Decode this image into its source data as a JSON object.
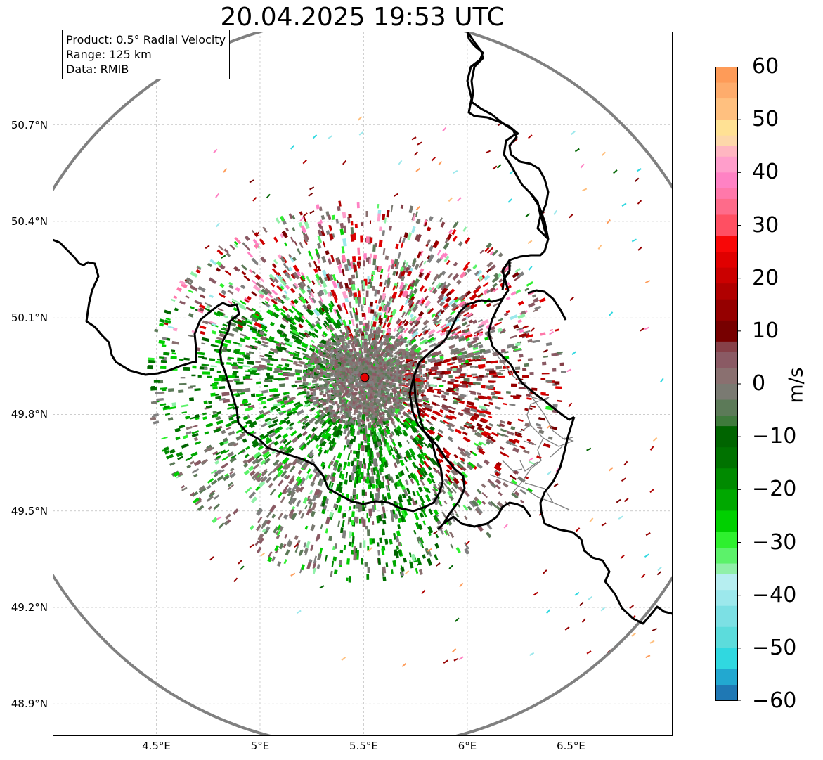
{
  "title": "20.04.2025 19:53 UTC",
  "info": {
    "product": "Product: 0.5° Radial Velocity",
    "range": "Range: 125 km",
    "source": "Data: RMIB"
  },
  "map": {
    "lon_range": [
      4.0,
      6.99
    ],
    "lat_range": [
      48.8,
      50.99
    ],
    "radar_site": {
      "lon": 5.505,
      "lat": 49.915
    },
    "range_km": 125,
    "x_ticks": [
      {
        "lon": 4.5,
        "label": "4.5°E"
      },
      {
        "lon": 5.0,
        "label": "5°E"
      },
      {
        "lon": 5.5,
        "label": "5.5°E"
      },
      {
        "lon": 6.0,
        "label": "6°E"
      },
      {
        "lon": 6.5,
        "label": "6.5°E"
      }
    ],
    "y_ticks": [
      {
        "lat": 50.7,
        "label": "50.7°N"
      },
      {
        "lat": 50.4,
        "label": "50.4°N"
      },
      {
        "lat": 50.1,
        "label": "50.1°N"
      },
      {
        "lat": 49.8,
        "label": "49.8°N"
      },
      {
        "lat": 49.5,
        "label": "49.5°N"
      },
      {
        "lat": 49.2,
        "label": "49.2°N"
      },
      {
        "lat": 48.9,
        "label": "48.9°N"
      }
    ],
    "gridlines": true,
    "range_ring_color": "#808080",
    "border_color": "#000000",
    "admin_border_color": "#808080",
    "site_marker_color": "#e60000"
  },
  "colorbar": {
    "unit": "m/s",
    "min": -60,
    "max": 60,
    "ticks": [
      {
        "value": 60,
        "label": "60"
      },
      {
        "value": 50,
        "label": "50"
      },
      {
        "value": 40,
        "label": "40"
      },
      {
        "value": 30,
        "label": "30"
      },
      {
        "value": 20,
        "label": "20"
      },
      {
        "value": 10,
        "label": "10"
      },
      {
        "value": 0,
        "label": "0"
      },
      {
        "value": -10,
        "label": "−10"
      },
      {
        "value": -20,
        "label": "−20"
      },
      {
        "value": -30,
        "label": "−30"
      },
      {
        "value": -40,
        "label": "−40"
      },
      {
        "value": -50,
        "label": "−50"
      },
      {
        "value": -60,
        "label": "−60"
      }
    ],
    "bands": [
      {
        "from": 57,
        "to": 60,
        "color": "#fe9b58"
      },
      {
        "from": 54,
        "to": 57,
        "color": "#feac6c"
      },
      {
        "from": 50,
        "to": 54,
        "color": "#ffc07f"
      },
      {
        "from": 47,
        "to": 50,
        "color": "#ffe194"
      },
      {
        "from": 45,
        "to": 47,
        "color": "#fdd7aa"
      },
      {
        "from": 43,
        "to": 45,
        "color": "#ffb6c1"
      },
      {
        "from": 40,
        "to": 43,
        "color": "#ff9ecb"
      },
      {
        "from": 37,
        "to": 40,
        "color": "#ff82c4"
      },
      {
        "from": 35,
        "to": 37,
        "color": "#ff78aa"
      },
      {
        "from": 32,
        "to": 35,
        "color": "#fe6b8a"
      },
      {
        "from": 28,
        "to": 32,
        "color": "#ff4f62"
      },
      {
        "from": 25,
        "to": 28,
        "color": "#f80707"
      },
      {
        "from": 22,
        "to": 25,
        "color": "#e00000"
      },
      {
        "from": 19,
        "to": 22,
        "color": "#cb0000"
      },
      {
        "from": 16,
        "to": 19,
        "color": "#b00000"
      },
      {
        "from": 12,
        "to": 16,
        "color": "#950000"
      },
      {
        "from": 8,
        "to": 12,
        "color": "#770000"
      },
      {
        "from": 6,
        "to": 8,
        "color": "#864048"
      },
      {
        "from": 3,
        "to": 6,
        "color": "#8a5a64"
      },
      {
        "from": 0,
        "to": 3,
        "color": "#8a7070"
      },
      {
        "from": -3,
        "to": 0,
        "color": "#7a7a72"
      },
      {
        "from": -6,
        "to": -3,
        "color": "#5c7a58"
      },
      {
        "from": -8,
        "to": -6,
        "color": "#3f7a3c"
      },
      {
        "from": -12,
        "to": -8,
        "color": "#006400"
      },
      {
        "from": -16,
        "to": -12,
        "color": "#007200"
      },
      {
        "from": -20,
        "to": -16,
        "color": "#008a00"
      },
      {
        "from": -24,
        "to": -20,
        "color": "#00a800"
      },
      {
        "from": -28,
        "to": -24,
        "color": "#00d000"
      },
      {
        "from": -31,
        "to": -28,
        "color": "#2ef02e"
      },
      {
        "from": -34,
        "to": -31,
        "color": "#5cf26a"
      },
      {
        "from": -36,
        "to": -34,
        "color": "#90f0a8"
      },
      {
        "from": -39,
        "to": -36,
        "color": "#b6eef0"
      },
      {
        "from": -42,
        "to": -39,
        "color": "#9ce8ec"
      },
      {
        "from": -46,
        "to": -42,
        "color": "#7ce0e4"
      },
      {
        "from": -50,
        "to": -46,
        "color": "#5cdcdc"
      },
      {
        "from": -54,
        "to": -50,
        "color": "#30d8e0"
      },
      {
        "from": -57,
        "to": -54,
        "color": "#22a8d0"
      },
      {
        "from": -60,
        "to": -57,
        "color": "#1f78b4"
      }
    ]
  },
  "colors": {
    "inbound_palette": [
      "#006400",
      "#007200",
      "#008a00",
      "#00a800",
      "#00d000",
      "#2ef02e",
      "#5cf26a",
      "#90f0a8"
    ],
    "outbound_palette": [
      "#770000",
      "#950000",
      "#b00000",
      "#cb0000",
      "#e00000",
      "#864048",
      "#ff78aa",
      "#ff9ecb"
    ],
    "near_zero_palette": [
      "#8a7070",
      "#7a7a72",
      "#8a5a64",
      "#5c7a58",
      "#808080"
    ],
    "far_palette": [
      "#ffc07f",
      "#fe9b58",
      "#ff82c4",
      "#30d8e0",
      "#9ce8ec",
      "#006400",
      "#950000"
    ]
  }
}
